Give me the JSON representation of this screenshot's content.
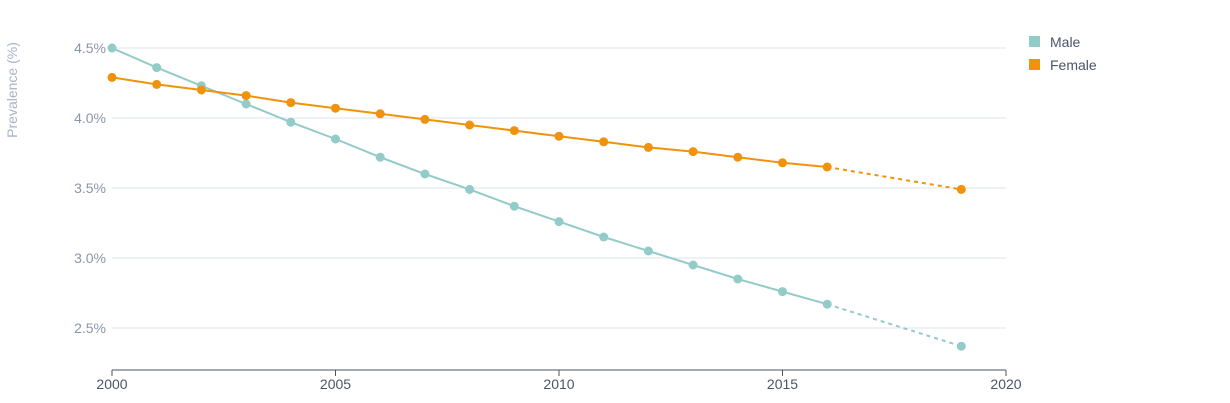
{
  "chart_data": {
    "type": "line",
    "ylabel": "Prevalence (%)",
    "xlabel": "",
    "xlim": [
      2000,
      2020
    ],
    "ylim": [
      2.2,
      4.55
    ],
    "x_ticks": [
      {
        "value": 2000,
        "label": "2000"
      },
      {
        "value": 2005,
        "label": "2005"
      },
      {
        "value": 2010,
        "label": "2010"
      },
      {
        "value": 2015,
        "label": "2015"
      },
      {
        "value": 2020,
        "label": "2020"
      }
    ],
    "y_ticks": [
      {
        "value": 2.5,
        "label": "2.5%"
      },
      {
        "value": 3.0,
        "label": "3.0%"
      },
      {
        "value": 3.5,
        "label": "3.5%"
      },
      {
        "value": 4.0,
        "label": "4.0%"
      },
      {
        "value": 4.5,
        "label": "4.5%"
      }
    ],
    "grid": true,
    "legend_position": "top-right",
    "projection_note": "segment after 2016 drawn dashed",
    "series": [
      {
        "name": "Male",
        "color": "#92cbc8",
        "x": [
          2000,
          2001,
          2002,
          2003,
          2004,
          2005,
          2006,
          2007,
          2008,
          2009,
          2010,
          2011,
          2012,
          2013,
          2014,
          2015,
          2016,
          2019
        ],
        "y": [
          4.5,
          4.36,
          4.23,
          4.1,
          3.97,
          3.85,
          3.72,
          3.6,
          3.49,
          3.37,
          3.26,
          3.15,
          3.05,
          2.95,
          2.85,
          2.76,
          2.67,
          2.37
        ],
        "dashed_from": 2016
      },
      {
        "name": "Female",
        "color": "#f0920c",
        "x": [
          2000,
          2001,
          2002,
          2003,
          2004,
          2005,
          2006,
          2007,
          2008,
          2009,
          2010,
          2011,
          2012,
          2013,
          2014,
          2015,
          2016,
          2019
        ],
        "y": [
          4.29,
          4.24,
          4.2,
          4.16,
          4.11,
          4.07,
          4.03,
          3.99,
          3.95,
          3.91,
          3.87,
          3.83,
          3.79,
          3.76,
          3.72,
          3.68,
          3.65,
          3.49
        ],
        "dashed_from": 2016
      }
    ]
  }
}
